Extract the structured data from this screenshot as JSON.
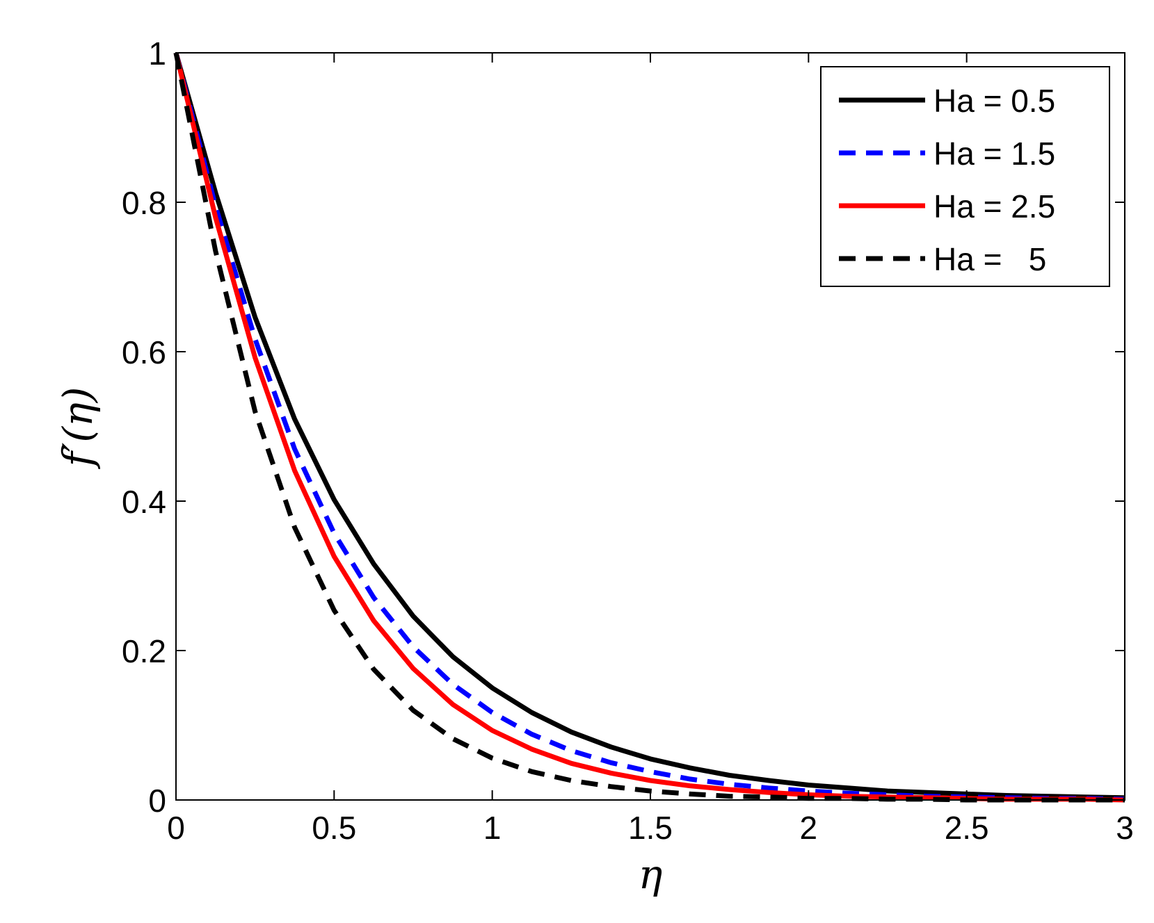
{
  "chart_data": {
    "type": "line",
    "title": "",
    "xlabel": "η",
    "ylabel": "f′(η)",
    "xlim": [
      0,
      3
    ],
    "ylim": [
      0,
      1
    ],
    "xticks": [
      0,
      0.5,
      1,
      1.5,
      2,
      2.5,
      3
    ],
    "xtick_labels": [
      "0",
      "0.5",
      "1",
      "1.5",
      "2",
      "2.5",
      "3"
    ],
    "yticks": [
      0,
      0.2,
      0.4,
      0.6,
      0.8,
      1
    ],
    "ytick_labels": [
      "0",
      "0.2",
      "0.4",
      "0.6",
      "0.8",
      "1"
    ],
    "grid": false,
    "legend_position": "top-right",
    "x": [
      0,
      0.125,
      0.25,
      0.375,
      0.5,
      0.625,
      0.75,
      0.875,
      1,
      1.125,
      1.25,
      1.375,
      1.5,
      1.625,
      1.75,
      1.875,
      2,
      2.125,
      2.25,
      2.375,
      2.5,
      2.625,
      2.75,
      2.875,
      3
    ],
    "series": [
      {
        "name": "Ha = 0.5",
        "color": "#000000",
        "style": "solid",
        "values": [
          1.0,
          0.813,
          0.646,
          0.51,
          0.402,
          0.316,
          0.246,
          0.192,
          0.15,
          0.117,
          0.091,
          0.071,
          0.055,
          0.043,
          0.033,
          0.026,
          0.02,
          0.016,
          0.012,
          0.01,
          0.008,
          0.006,
          0.005,
          0.004,
          0.003
        ]
      },
      {
        "name": "Ha = 1.5",
        "color": "#0000ff",
        "style": "dashed",
        "values": [
          1.0,
          0.795,
          0.617,
          0.47,
          0.357,
          0.271,
          0.205,
          0.155,
          0.117,
          0.088,
          0.066,
          0.05,
          0.038,
          0.028,
          0.021,
          0.016,
          0.012,
          0.009,
          0.007,
          0.005,
          0.004,
          0.003,
          0.002,
          0.002,
          0.001
        ]
      },
      {
        "name": "Ha = 2.5",
        "color": "#ff0000",
        "style": "solid",
        "values": [
          1.0,
          0.78,
          0.592,
          0.441,
          0.326,
          0.24,
          0.176,
          0.128,
          0.093,
          0.068,
          0.049,
          0.036,
          0.026,
          0.019,
          0.014,
          0.01,
          0.007,
          0.005,
          0.004,
          0.003,
          0.002,
          0.001,
          0.001,
          0.001,
          0.0
        ]
      },
      {
        "name": "Ha =   5",
        "color": "#000000",
        "style": "dashed",
        "values": [
          1.0,
          0.735,
          0.52,
          0.365,
          0.254,
          0.175,
          0.12,
          0.082,
          0.056,
          0.038,
          0.026,
          0.018,
          0.012,
          0.008,
          0.005,
          0.004,
          0.002,
          0.002,
          0.001,
          0.001,
          0.0,
          0.0,
          0.0,
          0.0,
          0.0
        ]
      }
    ]
  }
}
